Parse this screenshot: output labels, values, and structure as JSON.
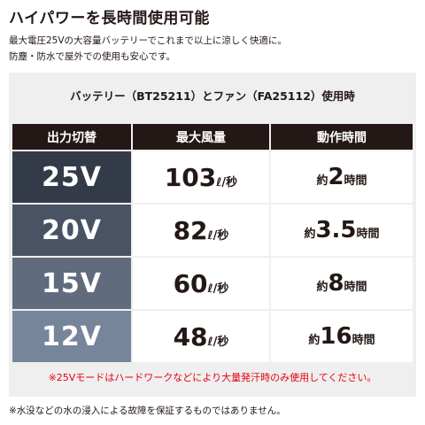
{
  "header": {
    "title": "ハイパワーを長時間使用可能",
    "description": [
      "最大電圧25Vの大容量バッテリーでこれまで以上に涼しく快適に。",
      "防塵・防水で屋外での使用も安心です。"
    ]
  },
  "table": {
    "subtitle": "バッテリー（BT25211）とファン（FA25112）使用時",
    "columns": [
      "出力切替",
      "最大風量",
      "動作時間"
    ],
    "rows": [
      {
        "mode": "25V",
        "airflow": "103",
        "airflow_unit": "ℓ/秒",
        "time_prefix": "約",
        "time": "2",
        "time_unit": "時間"
      },
      {
        "mode": "20V",
        "airflow": "82",
        "airflow_unit": "ℓ/秒",
        "time_prefix": "約",
        "time": "3.5",
        "time_unit": "時間"
      },
      {
        "mode": "15V",
        "airflow": "60",
        "airflow_unit": "ℓ/秒",
        "time_prefix": "約",
        "time": "8",
        "time_unit": "時間"
      },
      {
        "mode": "12V",
        "airflow": "48",
        "airflow_unit": "ℓ/秒",
        "time_prefix": "約",
        "time": "16",
        "time_unit": "時間"
      }
    ],
    "note": "※25Vモードはハードワークなどにより大量発汗時のみ使用してください。"
  },
  "footer": "※水没などの水の浸入による故障を保証するものではありません。"
}
